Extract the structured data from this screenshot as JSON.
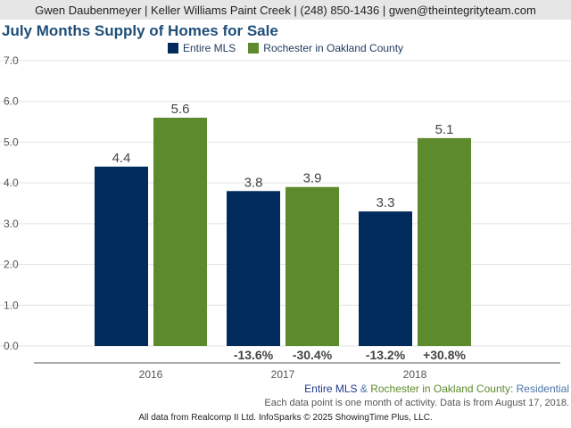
{
  "header": {
    "contact": "Gwen Daubenmeyer | Keller Williams Paint Creek | (248) 850-1436 | gwen@theintegrityteam.com"
  },
  "chart_data": {
    "type": "bar",
    "title": "July Months Supply of Homes for Sale",
    "categories": [
      "2016",
      "2017",
      "2018"
    ],
    "series": [
      {
        "name": "Entire MLS",
        "color": "#002b5c",
        "values": [
          4.4,
          3.8,
          3.3
        ],
        "value_labels": [
          "4.4",
          "3.8",
          "3.3"
        ],
        "change_labels": [
          "",
          "-13.6%",
          "-13.2%"
        ]
      },
      {
        "name": "Rochester in Oakland County",
        "color": "#5d8a2d",
        "values": [
          5.6,
          3.9,
          5.1
        ],
        "value_labels": [
          "5.6",
          "3.9",
          "5.1"
        ],
        "change_labels": [
          "",
          "-30.4%",
          "+30.8%"
        ]
      }
    ],
    "yticks": [
      "0.0",
      "1.0",
      "2.0",
      "3.0",
      "4.0",
      "5.0",
      "6.0",
      "7.0"
    ],
    "ylim": [
      0,
      7
    ],
    "grid": true,
    "legend_position": "top-center"
  },
  "caption": {
    "series1": "Entire MLS",
    "amp": " & ",
    "series2": "Rochester in Oakland County",
    "colon": ": ",
    "type": "Residential",
    "note": "Each data point is one month of activity. Data is from August 17, 2018."
  },
  "footer": {
    "text": "All data from Realcomp II Ltd. InfoSparks © 2025 ShowingTime Plus, LLC."
  },
  "colors": {
    "series1": "#002b5c",
    "series2": "#5d8a2d",
    "caption_series1": "#1f3a8a",
    "caption_series2": "#5d8a2d",
    "caption_type": "#4a74a8"
  }
}
